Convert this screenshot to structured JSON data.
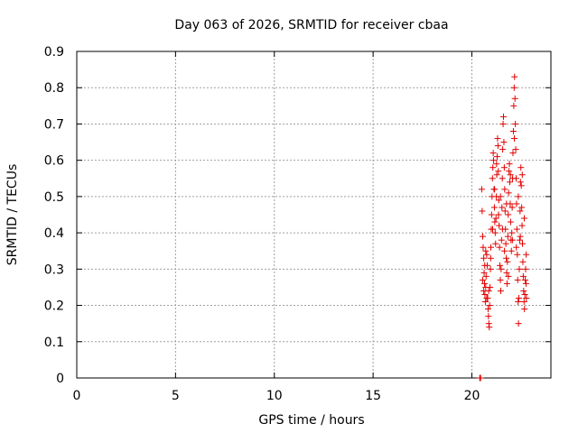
{
  "chart_data": {
    "type": "scatter",
    "title": "Day 063 of 2026, SRMTID for receiver cbaa",
    "xlabel": "GPS time / hours",
    "ylabel": "SRMTID / TECUs",
    "xlim": [
      0,
      24
    ],
    "ylim": [
      0,
      0.9
    ],
    "xticks": [
      "0",
      "5",
      "10",
      "15",
      "20"
    ],
    "yticks": [
      "0",
      "0.1",
      "0.2",
      "0.3",
      "0.4",
      "0.5",
      "0.6",
      "0.7",
      "0.8",
      "0.9"
    ],
    "grid": true,
    "marker": "plus",
    "color": "#e00000",
    "series": [
      {
        "points": [
          [
            20.4,
            0.0
          ],
          [
            20.42,
            0.0
          ],
          [
            20.44,
            0.0
          ],
          [
            20.5,
            0.52
          ],
          [
            20.52,
            0.46
          ],
          [
            20.55,
            0.39
          ],
          [
            20.57,
            0.36
          ],
          [
            20.6,
            0.33
          ],
          [
            20.62,
            0.29
          ],
          [
            20.64,
            0.26
          ],
          [
            20.66,
            0.23
          ],
          [
            20.68,
            0.21
          ],
          [
            20.7,
            0.25
          ],
          [
            20.72,
            0.28
          ],
          [
            20.75,
            0.34
          ],
          [
            20.78,
            0.31
          ],
          [
            20.8,
            0.22
          ],
          [
            20.82,
            0.19
          ],
          [
            20.84,
            0.17
          ],
          [
            20.86,
            0.15
          ],
          [
            20.88,
            0.14
          ],
          [
            20.9,
            0.2
          ],
          [
            20.92,
            0.25
          ],
          [
            20.94,
            0.3
          ],
          [
            20.96,
            0.36
          ],
          [
            20.98,
            0.41
          ],
          [
            21.0,
            0.45
          ],
          [
            21.02,
            0.5
          ],
          [
            21.04,
            0.55
          ],
          [
            21.06,
            0.58
          ],
          [
            21.08,
            0.62
          ],
          [
            21.1,
            0.6
          ],
          [
            21.12,
            0.52
          ],
          [
            21.14,
            0.47
          ],
          [
            21.16,
            0.43
          ],
          [
            21.18,
            0.4
          ],
          [
            21.2,
            0.37
          ],
          [
            21.22,
            0.44
          ],
          [
            21.24,
            0.5
          ],
          [
            21.26,
            0.56
          ],
          [
            21.28,
            0.61
          ],
          [
            21.3,
            0.66
          ],
          [
            21.32,
            0.64
          ],
          [
            21.34,
            0.57
          ],
          [
            21.36,
            0.49
          ],
          [
            21.38,
            0.42
          ],
          [
            21.4,
            0.36
          ],
          [
            21.42,
            0.31
          ],
          [
            21.44,
            0.27
          ],
          [
            21.46,
            0.24
          ],
          [
            21.48,
            0.3
          ],
          [
            21.5,
            0.38
          ],
          [
            21.52,
            0.47
          ],
          [
            21.54,
            0.55
          ],
          [
            21.56,
            0.63
          ],
          [
            21.58,
            0.7
          ],
          [
            21.6,
            0.72
          ],
          [
            21.62,
            0.65
          ],
          [
            21.64,
            0.58
          ],
          [
            21.66,
            0.52
          ],
          [
            21.68,
            0.46
          ],
          [
            21.7,
            0.41
          ],
          [
            21.72,
            0.37
          ],
          [
            21.74,
            0.33
          ],
          [
            21.76,
            0.29
          ],
          [
            21.78,
            0.26
          ],
          [
            21.8,
            0.32
          ],
          [
            21.82,
            0.39
          ],
          [
            21.84,
            0.45
          ],
          [
            21.86,
            0.51
          ],
          [
            21.88,
            0.57
          ],
          [
            21.9,
            0.59
          ],
          [
            21.92,
            0.54
          ],
          [
            21.94,
            0.48
          ],
          [
            21.96,
            0.43
          ],
          [
            21.98,
            0.38
          ],
          [
            22.0,
            0.35
          ],
          [
            22.02,
            0.4
          ],
          [
            22.04,
            0.47
          ],
          [
            22.06,
            0.55
          ],
          [
            22.08,
            0.62
          ],
          [
            22.1,
            0.68
          ],
          [
            22.12,
            0.75
          ],
          [
            22.14,
            0.8
          ],
          [
            22.16,
            0.83
          ],
          [
            22.18,
            0.77
          ],
          [
            22.2,
            0.7
          ],
          [
            22.22,
            0.63
          ],
          [
            22.24,
            0.55
          ],
          [
            22.26,
            0.48
          ],
          [
            22.28,
            0.41
          ],
          [
            22.3,
            0.34
          ],
          [
            22.32,
            0.27
          ],
          [
            22.34,
            0.21
          ],
          [
            22.36,
            0.15
          ],
          [
            22.38,
            0.22
          ],
          [
            22.4,
            0.3
          ],
          [
            22.42,
            0.38
          ],
          [
            22.44,
            0.46
          ],
          [
            22.46,
            0.54
          ],
          [
            22.48,
            0.58
          ],
          [
            22.5,
            0.53
          ],
          [
            22.52,
            0.47
          ],
          [
            22.54,
            0.42
          ],
          [
            22.56,
            0.37
          ],
          [
            22.58,
            0.32
          ],
          [
            22.6,
            0.28
          ],
          [
            22.62,
            0.24
          ],
          [
            22.64,
            0.21
          ],
          [
            22.66,
            0.19
          ],
          [
            22.68,
            0.23
          ],
          [
            22.7,
            0.27
          ],
          [
            22.72,
            0.3
          ],
          [
            22.74,
            0.26
          ],
          [
            22.76,
            0.22
          ],
          [
            20.55,
            0.27
          ],
          [
            20.6,
            0.24
          ],
          [
            20.65,
            0.31
          ],
          [
            20.7,
            0.35
          ],
          [
            20.75,
            0.22
          ],
          [
            20.85,
            0.24
          ],
          [
            20.95,
            0.33
          ],
          [
            21.05,
            0.41
          ],
          [
            21.15,
            0.52
          ],
          [
            21.25,
            0.59
          ],
          [
            21.35,
            0.45
          ],
          [
            21.45,
            0.5
          ],
          [
            21.55,
            0.41
          ],
          [
            21.65,
            0.35
          ],
          [
            21.75,
            0.48
          ],
          [
            21.85,
            0.28
          ],
          [
            21.95,
            0.56
          ],
          [
            22.05,
            0.38
          ],
          [
            22.15,
            0.66
          ],
          [
            22.25,
            0.36
          ],
          [
            22.35,
            0.5
          ],
          [
            22.45,
            0.39
          ],
          [
            22.55,
            0.56
          ],
          [
            22.65,
            0.44
          ],
          [
            22.75,
            0.34
          ]
        ]
      }
    ]
  }
}
